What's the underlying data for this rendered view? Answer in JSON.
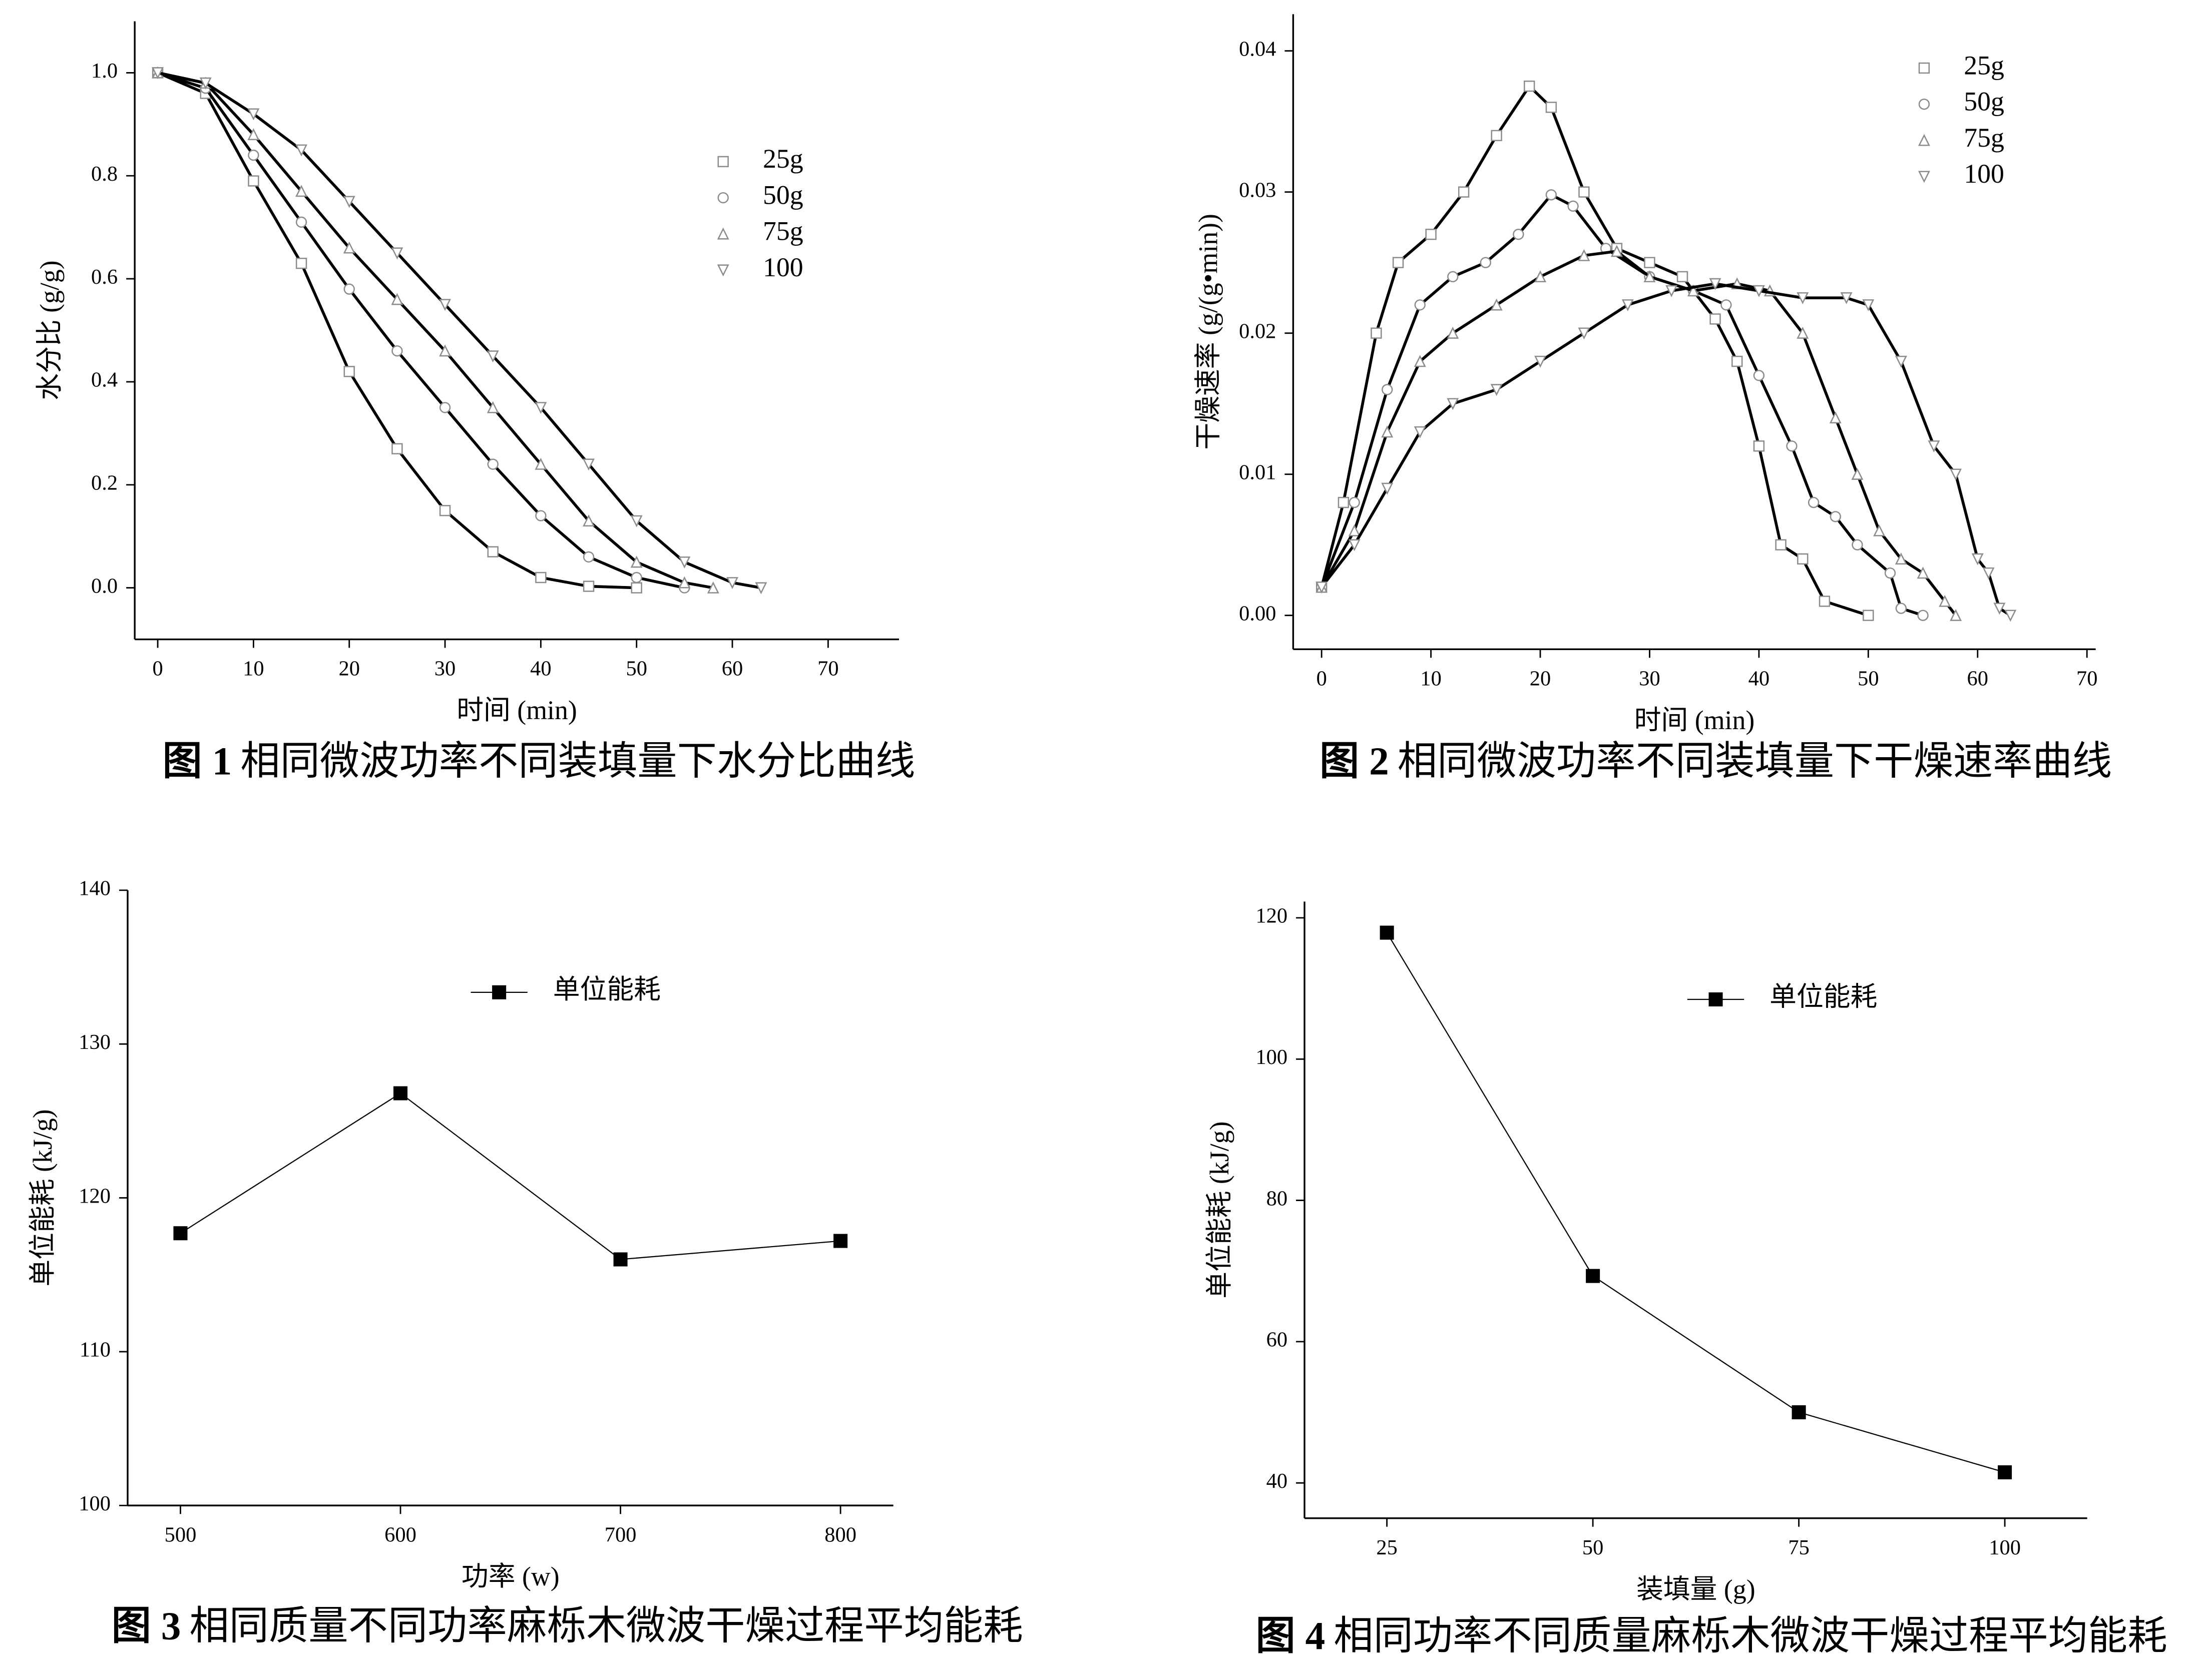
{
  "chart_data": [
    {
      "type": "line",
      "figure_label": "图 1",
      "caption": "相同微波功率不同装填量下水分比曲线",
      "x_label": "时间 (min)",
      "y_label": "水分比 (g/g)",
      "xlim": [
        -2.4,
        77.4
      ],
      "ylim": [
        -0.1,
        1.1
      ],
      "xticks": [
        0,
        10,
        20,
        30,
        40,
        50,
        60,
        70
      ],
      "yticks": [
        {
          "value": 0,
          "label": "0.0"
        },
        0.2,
        0.4,
        0.6,
        0.8,
        {
          "value": 1,
          "label": "1.0"
        }
      ],
      "legend": "upper right",
      "fit_color": "#000000",
      "series": [
        {
          "name": "25g",
          "color": "#8c8c8c",
          "marker": "square",
          "x": [
            0,
            5,
            10,
            15,
            20,
            25,
            30,
            35,
            40,
            45,
            50
          ],
          "values": [
            1,
            0.96,
            0.79,
            0.63,
            0.42,
            0.27,
            0.15,
            0.07,
            0.02,
            0.003,
            0
          ]
        },
        {
          "name": "50g",
          "color": "#8c8c8c",
          "marker": "circle",
          "x": [
            0,
            5,
            10,
            15,
            20,
            25,
            30,
            35,
            40,
            45,
            50,
            55
          ],
          "values": [
            1,
            0.97,
            0.84,
            0.71,
            0.58,
            0.46,
            0.35,
            0.24,
            0.14,
            0.06,
            0.02,
            0
          ]
        },
        {
          "name": "75g",
          "color": "#8c8c8c",
          "marker": "triangle",
          "x": [
            0,
            5,
            10,
            15,
            20,
            25,
            30,
            35,
            40,
            45,
            50,
            55,
            58
          ],
          "values": [
            1,
            0.98,
            0.88,
            0.77,
            0.66,
            0.56,
            0.46,
            0.35,
            0.24,
            0.13,
            0.05,
            0.01,
            0
          ]
        },
        {
          "name": "100",
          "color": "#8c8c8c",
          "marker": "triangle-down",
          "x": [
            0,
            5,
            10,
            15,
            20,
            25,
            30,
            35,
            40,
            45,
            50,
            55,
            60,
            63
          ],
          "values": [
            1,
            0.98,
            0.92,
            0.85,
            0.75,
            0.65,
            0.55,
            0.45,
            0.35,
            0.24,
            0.13,
            0.05,
            0.01,
            0
          ]
        }
      ]
    },
    {
      "type": "line",
      "figure_label": "图 2",
      "caption": "相同微波功率不同装填量下干燥速率曲线",
      "x_label": "时间 (min)",
      "y_label": "干燥速率 (g/(g•min))",
      "xlim": [
        -2.6,
        70.8
      ],
      "ylim": [
        -0.0024,
        0.0426
      ],
      "xticks": [
        0,
        10,
        20,
        30,
        40,
        50,
        60,
        70
      ],
      "yticks": [
        {
          "value": 0,
          "label": "0.00"
        },
        {
          "value": 0.01,
          "label": "0.01"
        },
        {
          "value": 0.02,
          "label": "0.02"
        },
        {
          "value": 0.03,
          "label": "0.03"
        },
        {
          "value": 0.04,
          "label": "0.04"
        }
      ],
      "legend": "upper right",
      "fit_color": "#000000",
      "series": [
        {
          "name": "25g",
          "color": "#8c8c8c",
          "marker": "square",
          "x": [
            0,
            2,
            5,
            7,
            10,
            13,
            16,
            19,
            21,
            24,
            27,
            30,
            33,
            36,
            38,
            40,
            42,
            44,
            46,
            50
          ],
          "values": [
            0.002,
            0.008,
            0.02,
            0.025,
            0.027,
            0.03,
            0.034,
            0.0375,
            0.036,
            0.03,
            0.026,
            0.025,
            0.024,
            0.021,
            0.018,
            0.012,
            0.005,
            0.004,
            0.001,
            0
          ]
        },
        {
          "name": "50g",
          "color": "#8c8c8c",
          "marker": "circle",
          "x": [
            0,
            3,
            6,
            9,
            12,
            15,
            18,
            21,
            23,
            26,
            30,
            34,
            37,
            40,
            43,
            45,
            47,
            49,
            52,
            53,
            55
          ],
          "values": [
            0.002,
            0.008,
            0.016,
            0.022,
            0.024,
            0.025,
            0.027,
            0.0298,
            0.029,
            0.026,
            0.024,
            0.023,
            0.022,
            0.017,
            0.012,
            0.008,
            0.007,
            0.005,
            0.003,
            0.0005,
            0
          ]
        },
        {
          "name": "75g",
          "color": "#8c8c8c",
          "marker": "triangle",
          "x": [
            0,
            3,
            6,
            9,
            12,
            16,
            20,
            24,
            27,
            30,
            34,
            38,
            41,
            44,
            47,
            49,
            51,
            53,
            55,
            57,
            58
          ],
          "values": [
            0.002,
            0.006,
            0.013,
            0.018,
            0.02,
            0.022,
            0.024,
            0.0255,
            0.0258,
            0.024,
            0.023,
            0.0235,
            0.023,
            0.02,
            0.014,
            0.01,
            0.006,
            0.004,
            0.003,
            0.001,
            0
          ]
        },
        {
          "name": "100",
          "color": "#8c8c8c",
          "marker": "triangle-down",
          "x": [
            0,
            3,
            6,
            9,
            12,
            16,
            20,
            24,
            28,
            32,
            36,
            40,
            44,
            48,
            50,
            53,
            56,
            58,
            60,
            61,
            62,
            63
          ],
          "values": [
            0.002,
            0.005,
            0.009,
            0.013,
            0.015,
            0.016,
            0.018,
            0.02,
            0.022,
            0.023,
            0.0235,
            0.023,
            0.0225,
            0.0225,
            0.022,
            0.018,
            0.012,
            0.01,
            0.004,
            0.003,
            0.0005,
            0
          ]
        }
      ]
    },
    {
      "type": "line",
      "figure_label": "图 3",
      "caption": "相同质量不同功率麻栎木微波干燥过程平均能耗",
      "x_label": "功率 (w)",
      "y_label": "单位能耗 (kJ/g)",
      "xlim": [
        476,
        824
      ],
      "ylim": [
        100,
        140
      ],
      "xticks": [
        500,
        600,
        700,
        800
      ],
      "yticks": [
        100,
        110,
        120,
        130,
        140
      ],
      "legend": "upper center",
      "fit_color": "#000000",
      "x": [
        500,
        600,
        700,
        800
      ],
      "series": [
        {
          "name": "单位能耗",
          "color": "#000000",
          "marker": "filled-square",
          "values": [
            117.7,
            126.8,
            116.0,
            117.2
          ]
        }
      ]
    },
    {
      "type": "line",
      "figure_label": "图 4",
      "caption": "相同功率不同质量麻栎木微波干燥过程平均能耗",
      "x_label": "装填量 (g)",
      "y_label": "单位能耗 (kJ/g)",
      "xlim": [
        15,
        110
      ],
      "ylim": [
        35,
        122.3
      ],
      "xticks": [
        25,
        50,
        75,
        100
      ],
      "yticks": [
        40,
        60,
        80,
        100,
        120
      ],
      "legend": "upper right",
      "fit_color": "#000000",
      "x": [
        25,
        50,
        75,
        100
      ],
      "series": [
        {
          "name": "单位能耗",
          "color": "#000000",
          "marker": "filled-square",
          "values": [
            117.9,
            69.3,
            50.0,
            41.5
          ]
        }
      ]
    }
  ]
}
